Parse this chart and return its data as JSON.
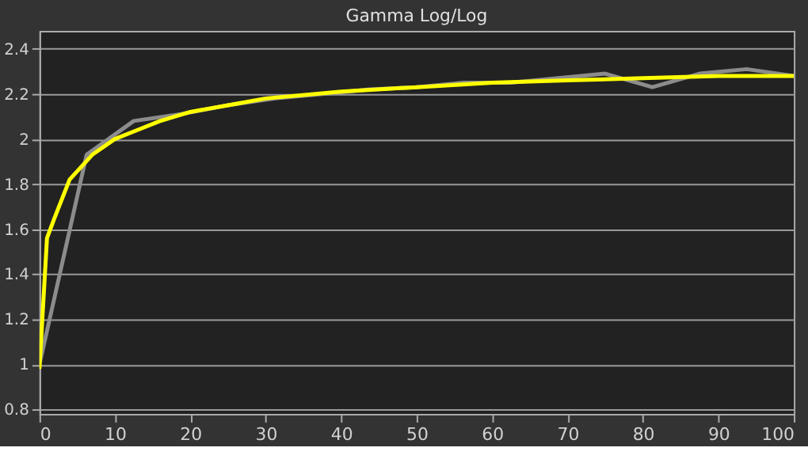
{
  "chart_data": {
    "type": "line",
    "title": "Gamma Log/Log",
    "xlim": [
      0,
      100
    ],
    "xticks": [
      0,
      10,
      20,
      30,
      40,
      50,
      60,
      70,
      80,
      90,
      100
    ],
    "ylim": [
      0.78,
      2.48
    ],
    "yticks": [
      0.8,
      1,
      1.2,
      1.4,
      1.6,
      1.8,
      2,
      2.2,
      2.4
    ],
    "grid": "y",
    "marker": "none",
    "line_style": "solid",
    "series": [
      {
        "color": "#8c8c8c",
        "x": [
          0,
          6.25,
          12.5,
          18.75,
          25,
          31.25,
          37.5,
          43.75,
          50,
          56.25,
          62.5,
          68.75,
          75,
          81.25,
          87.5,
          93.75,
          100
        ],
        "values": [
          1.0,
          1.93,
          2.08,
          2.11,
          2.15,
          2.18,
          2.2,
          2.22,
          2.23,
          2.25,
          2.25,
          2.27,
          2.29,
          2.23,
          2.29,
          2.31,
          2.28
        ]
      },
      {
        "color": "#ffff00",
        "x": [
          0,
          1,
          2,
          4,
          7,
          10,
          13,
          16,
          20,
          25,
          30,
          40,
          50,
          60,
          70,
          80,
          90,
          100
        ],
        "values": [
          0.98,
          1.56,
          1.65,
          1.82,
          1.93,
          2.0,
          2.04,
          2.08,
          2.12,
          2.15,
          2.18,
          2.21,
          2.23,
          2.25,
          2.26,
          2.27,
          2.28,
          2.28
        ]
      }
    ]
  }
}
